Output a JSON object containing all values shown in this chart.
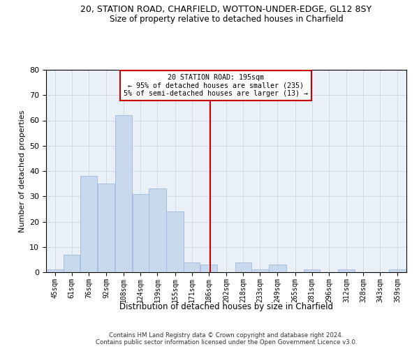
{
  "title_line1": "20, STATION ROAD, CHARFIELD, WOTTON-UNDER-EDGE, GL12 8SY",
  "title_line2": "Size of property relative to detached houses in Charfield",
  "xlabel": "Distribution of detached houses by size in Charfield",
  "ylabel": "Number of detached properties",
  "footnote": "Contains HM Land Registry data © Crown copyright and database right 2024.\nContains public sector information licensed under the Open Government Licence v3.0.",
  "bin_labels": [
    "45sqm",
    "61sqm",
    "76sqm",
    "92sqm",
    "108sqm",
    "124sqm",
    "139sqm",
    "155sqm",
    "171sqm",
    "186sqm",
    "202sqm",
    "218sqm",
    "233sqm",
    "249sqm",
    "265sqm",
    "281sqm",
    "296sqm",
    "312sqm",
    "328sqm",
    "343sqm",
    "359sqm"
  ],
  "bar_values": [
    1,
    7,
    38,
    35,
    62,
    31,
    33,
    24,
    4,
    3,
    0,
    4,
    1,
    3,
    0,
    1,
    0,
    1,
    0,
    0,
    1
  ],
  "bar_color": "#c9d9ed",
  "bar_edgecolor": "#a0b8d8",
  "vline_x": 195,
  "vline_color": "#cc0000",
  "annotation_text": "20 STATION ROAD: 195sqm\n← 95% of detached houses are smaller (235)\n5% of semi-detached houses are larger (13) →",
  "annotation_box_color": "#cc0000",
  "ylim": [
    0,
    80
  ],
  "yticks": [
    0,
    10,
    20,
    30,
    40,
    50,
    60,
    70,
    80
  ],
  "bin_edges": [
    45,
    61,
    76,
    92,
    108,
    124,
    139,
    155,
    171,
    186,
    202,
    218,
    233,
    249,
    265,
    281,
    296,
    312,
    328,
    343,
    359,
    375
  ],
  "background_color": "#ffffff",
  "grid_color": "#d0d8e8",
  "ax_facecolor": "#eaf0f8"
}
